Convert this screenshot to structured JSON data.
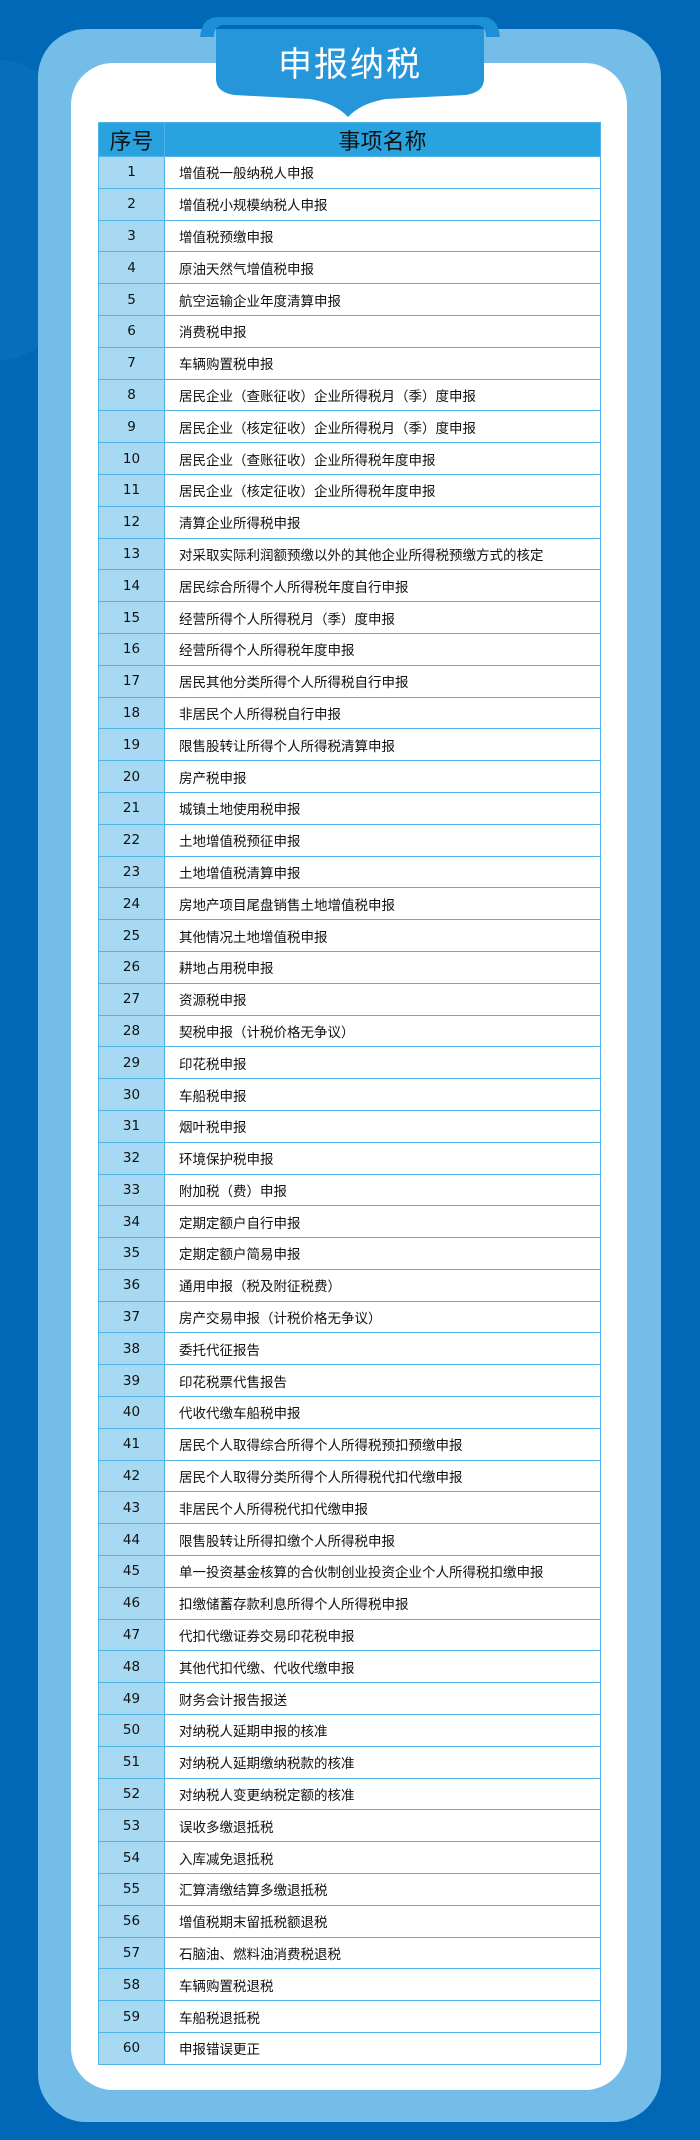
{
  "title": "申报纳税",
  "table": {
    "headers": [
      "序号",
      "事项名称"
    ],
    "rows": [
      [
        "1",
        "增值税一般纳税人申报"
      ],
      [
        "2",
        "增值税小规模纳税人申报"
      ],
      [
        "3",
        "增值税预缴申报"
      ],
      [
        "4",
        "原油天然气增值税申报"
      ],
      [
        "5",
        "航空运输企业年度清算申报"
      ],
      [
        "6",
        "消费税申报"
      ],
      [
        "7",
        "车辆购置税申报"
      ],
      [
        "8",
        "居民企业（查账征收）企业所得税月（季）度申报"
      ],
      [
        "9",
        "居民企业（核定征收）企业所得税月（季）度申报"
      ],
      [
        "10",
        "居民企业（查账征收）企业所得税年度申报"
      ],
      [
        "11",
        "居民企业（核定征收）企业所得税年度申报"
      ],
      [
        "12",
        "清算企业所得税申报"
      ],
      [
        "13",
        "对采取实际利润额预缴以外的其他企业所得税预缴方式的核定"
      ],
      [
        "14",
        "居民综合所得个人所得税年度自行申报"
      ],
      [
        "15",
        "经营所得个人所得税月（季）度申报"
      ],
      [
        "16",
        "经营所得个人所得税年度申报"
      ],
      [
        "17",
        "居民其他分类所得个人所得税自行申报"
      ],
      [
        "18",
        "非居民个人所得税自行申报"
      ],
      [
        "19",
        "限售股转让所得个人所得税清算申报"
      ],
      [
        "20",
        "房产税申报"
      ],
      [
        "21",
        "城镇土地使用税申报"
      ],
      [
        "22",
        "土地增值税预征申报"
      ],
      [
        "23",
        "土地增值税清算申报"
      ],
      [
        "24",
        "房地产项目尾盘销售土地增值税申报"
      ],
      [
        "25",
        "其他情况土地增值税申报"
      ],
      [
        "26",
        "耕地占用税申报"
      ],
      [
        "27",
        "资源税申报"
      ],
      [
        "28",
        "契税申报（计税价格无争议）"
      ],
      [
        "29",
        "印花税申报"
      ],
      [
        "30",
        "车船税申报"
      ],
      [
        "31",
        "烟叶税申报"
      ],
      [
        "32",
        "环境保护税申报"
      ],
      [
        "33",
        "附加税（费）申报"
      ],
      [
        "34",
        "定期定额户自行申报"
      ],
      [
        "35",
        "定期定额户简易申报"
      ],
      [
        "36",
        "通用申报（税及附征税费）"
      ],
      [
        "37",
        "房产交易申报（计税价格无争议）"
      ],
      [
        "38",
        "委托代征报告"
      ],
      [
        "39",
        "印花税票代售报告"
      ],
      [
        "40",
        "代收代缴车船税申报"
      ],
      [
        "41",
        "居民个人取得综合所得个人所得税预扣预缴申报"
      ],
      [
        "42",
        "居民个人取得分类所得个人所得税代扣代缴申报"
      ],
      [
        "43",
        "非居民个人所得税代扣代缴申报"
      ],
      [
        "44",
        "限售股转让所得扣缴个人所得税申报"
      ],
      [
        "45",
        "单一投资基金核算的合伙制创业投资企业个人所得税扣缴申报"
      ],
      [
        "46",
        "扣缴储蓄存款利息所得个人所得税申报"
      ],
      [
        "47",
        "代扣代缴证券交易印花税申报"
      ],
      [
        "48",
        "其他代扣代缴、代收代缴申报"
      ],
      [
        "49",
        "财务会计报告报送"
      ],
      [
        "50",
        "对纳税人延期申报的核准"
      ],
      [
        "51",
        "对纳税人延期缴纳税款的核准"
      ],
      [
        "52",
        "对纳税人变更纳税定额的核准"
      ],
      [
        "53",
        "误收多缴退抵税"
      ],
      [
        "54",
        "入库减免退抵税"
      ],
      [
        "55",
        "汇算清缴结算多缴退抵税"
      ],
      [
        "56",
        "增值税期末留抵税额退税"
      ],
      [
        "57",
        "石脑油、燃料油消费税退税"
      ],
      [
        "58",
        "车辆购置税退税"
      ],
      [
        "59",
        "车船税退抵税"
      ],
      [
        "60",
        "申报错误更正"
      ]
    ]
  }
}
